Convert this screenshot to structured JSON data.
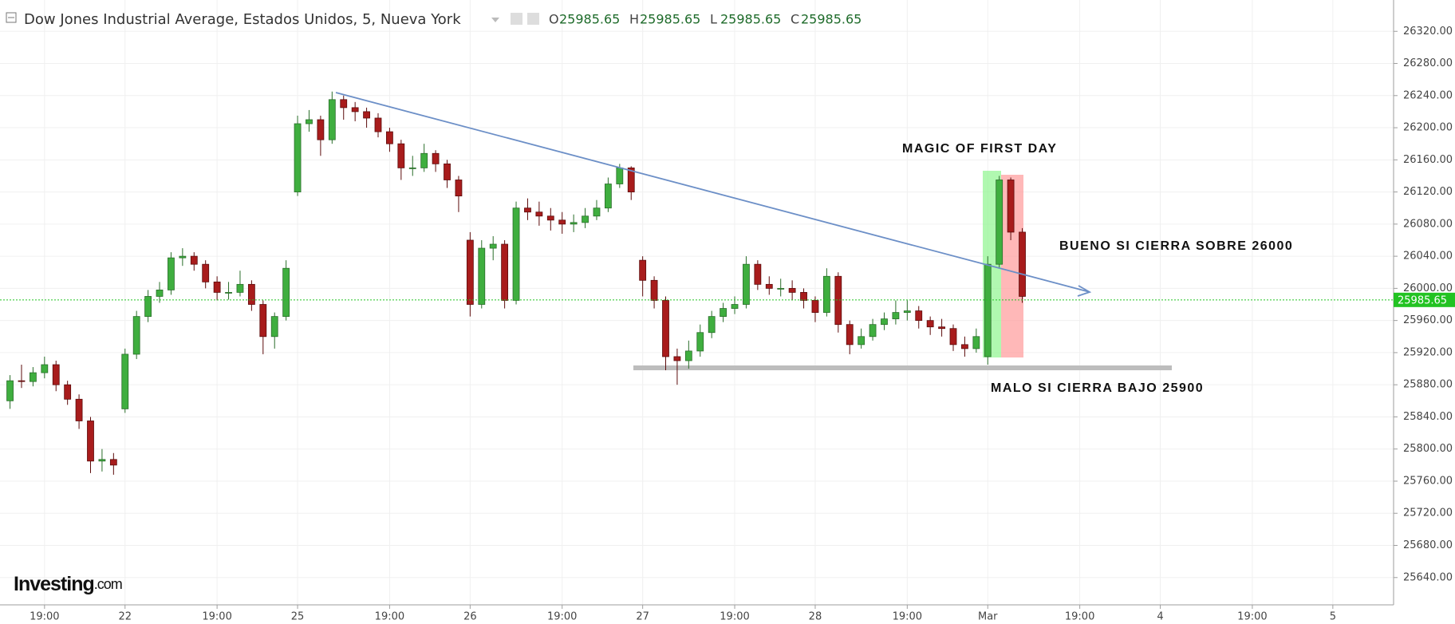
{
  "chart_data": {
    "type": "candlestick",
    "title": "Dow Jones Industrial Average, Estados Unidos, 5, Nueva York",
    "ohlc_labels": [
      "O",
      "H",
      "L",
      "C"
    ],
    "ohlc_values": [
      25985.65,
      25985.65,
      25985.65,
      25985.65
    ],
    "last_price": 25985.65,
    "annotations": [
      "MAGIC OF FIRST DAY",
      "BUENO SI CIERRA SOBRE 26000",
      "MALO SI CIERRA BAJO 25900"
    ],
    "logo": "Investing",
    "logo_suffix": ".com",
    "up_color": "#3fae3f",
    "down_color": "#a81c1c",
    "last_color": "#22c322",
    "grid": true,
    "ylim": [
      25606,
      26359
    ],
    "yticks": [
      {
        "value": 25640,
        "label": "25640.00"
      },
      {
        "value": 25680,
        "label": "25680.00"
      },
      {
        "value": 25720,
        "label": "25720.00"
      },
      {
        "value": 25760,
        "label": "25760.00"
      },
      {
        "value": 25800,
        "label": "25800.00"
      },
      {
        "value": 25840,
        "label": "25840.00"
      },
      {
        "value": 25880,
        "label": "25880.00"
      },
      {
        "value": 25920,
        "label": "25920.00"
      },
      {
        "value": 25960,
        "label": "25960.00"
      },
      {
        "value": 26000,
        "label": "26000.00"
      },
      {
        "value": 26040,
        "label": "26040.00"
      },
      {
        "value": 26080,
        "label": "26080.00"
      },
      {
        "value": 26120,
        "label": "26120.00"
      },
      {
        "value": 26160,
        "label": "26160.00"
      },
      {
        "value": 26200,
        "label": "26200.00"
      },
      {
        "value": 26240,
        "label": "26240.00"
      },
      {
        "value": 26280,
        "label": "26280.00"
      },
      {
        "value": 26320,
        "label": "26320.00"
      }
    ],
    "categories": [
      null,
      null,
      null,
      "19:00",
      null,
      null,
      null,
      null,
      null,
      null,
      "22",
      null,
      null,
      null,
      null,
      null,
      null,
      null,
      "19:00",
      null,
      null,
      null,
      null,
      null,
      null,
      "25",
      null,
      null,
      null,
      null,
      null,
      null,
      null,
      "19:00",
      null,
      null,
      null,
      null,
      null,
      null,
      "26",
      null,
      null,
      null,
      null,
      null,
      null,
      null,
      "19:00",
      null,
      null,
      null,
      null,
      null,
      null,
      "27",
      null,
      null,
      null,
      null,
      null,
      null,
      null,
      "19:00",
      null,
      null,
      null,
      null,
      null,
      null,
      "28",
      null,
      null,
      null,
      null,
      null,
      null,
      null,
      "19:00",
      null,
      null,
      null,
      null,
      null,
      null,
      "Mar",
      null,
      null,
      null,
      null,
      null,
      null,
      null,
      "19:00",
      null,
      null,
      null,
      null,
      null,
      null,
      "4",
      null,
      null,
      null,
      null,
      null,
      null,
      null,
      "19:00",
      null,
      null,
      null,
      null,
      null,
      null,
      "5",
      null,
      null,
      null,
      null,
      null
    ],
    "open": [
      25860,
      25885,
      25884,
      25895,
      25905,
      25880,
      25862,
      25835,
      25785,
      25787,
      25850,
      25918,
      25965,
      25990,
      25998,
      26038,
      26040,
      26030,
      26008,
      25995,
      25995,
      26005,
      25980,
      25940,
      25965,
      26120,
      26205,
      26210,
      26185,
      26235,
      26225,
      26220,
      26212,
      26195,
      26180,
      26150,
      26150,
      26168,
      26155,
      26135,
      26060,
      25980,
      26050,
      26055,
      25985,
      26100,
      26095,
      26090,
      26085,
      26080,
      26082,
      26090,
      26100,
      26130,
      26150,
      26035,
      26010,
      25985,
      25915,
      25910,
      25922,
      25945,
      25965,
      25975,
      25980,
      26030,
      26005,
      26000,
      26000,
      25995,
      25985,
      25970,
      26015,
      25955,
      25930,
      25940,
      25955,
      25962,
      25970,
      25972,
      25960,
      25952,
      25950,
      25930,
      25925,
      25915,
      26030,
      26135,
      26070,
      null,
      null,
      null,
      null,
      null,
      null,
      null,
      null,
      null,
      null,
      null,
      null,
      null,
      null,
      null,
      null,
      null,
      null,
      null,
      null,
      null,
      null,
      null,
      null,
      null,
      null,
      null,
      null,
      null,
      null,
      null,
      null
    ],
    "high": [
      25892,
      25905,
      25902,
      25915,
      25910,
      25885,
      25868,
      25840,
      25800,
      25795,
      25925,
      25972,
      25998,
      26008,
      26045,
      26050,
      26045,
      26035,
      26015,
      26008,
      26022,
      26010,
      25985,
      25970,
      26035,
      26215,
      26222,
      26215,
      26245,
      26240,
      26232,
      26225,
      26218,
      26200,
      26185,
      26165,
      26180,
      26172,
      26160,
      26140,
      26070,
      26060,
      26065,
      26060,
      26108,
      26112,
      26108,
      26100,
      26095,
      26092,
      26100,
      26110,
      26138,
      26155,
      26152,
      26040,
      26015,
      25990,
      25925,
      25935,
      25955,
      25972,
      25982,
      25990,
      26040,
      26035,
      26015,
      26012,
      26010,
      26000,
      25990,
      26025,
      26020,
      25960,
      25950,
      25962,
      25970,
      25985,
      25985,
      25978,
      25965,
      25962,
      25955,
      25940,
      25950,
      26040,
      26140,
      26138,
      26075,
      null,
      null,
      null,
      null,
      null,
      null,
      null,
      null,
      null,
      null,
      null,
      null,
      null,
      null,
      null,
      null,
      null,
      null,
      null,
      null,
      null,
      null,
      null,
      null,
      null,
      null,
      null,
      null,
      null,
      null,
      null,
      null
    ],
    "low": [
      25850,
      25876,
      25878,
      25888,
      25872,
      25855,
      25825,
      25770,
      25772,
      25768,
      25845,
      25912,
      25958,
      25982,
      25992,
      26028,
      26022,
      26000,
      25985,
      25986,
      25990,
      25972,
      25918,
      25925,
      25960,
      26115,
      26195,
      26165,
      26180,
      26210,
      26208,
      26200,
      26188,
      26170,
      26135,
      26140,
      26145,
      26145,
      26125,
      26095,
      25965,
      25975,
      26035,
      25975,
      25980,
      26085,
      26078,
      26072,
      26068,
      26070,
      26075,
      26085,
      26095,
      26125,
      26110,
      25990,
      25975,
      25898,
      25880,
      25900,
      25915,
      25938,
      25958,
      25968,
      25975,
      25998,
      25992,
      25990,
      25985,
      25975,
      25958,
      25965,
      25945,
      25918,
      25925,
      25935,
      25948,
      25955,
      25960,
      25950,
      25942,
      25940,
      25922,
      25915,
      25920,
      25905,
      26025,
      26060,
      25982,
      null,
      null,
      null,
      null,
      null,
      null,
      null,
      null,
      null,
      null,
      null,
      null,
      null,
      null,
      null,
      null,
      null,
      null,
      null,
      null,
      null,
      null,
      null,
      null,
      null,
      null,
      null,
      null,
      null,
      null,
      null,
      null
    ],
    "close": [
      25885,
      25884,
      25895,
      25905,
      25880,
      25862,
      25835,
      25785,
      25787,
      25780,
      25918,
      25965,
      25990,
      25998,
      26038,
      26040,
      26030,
      26008,
      25995,
      25995,
      26005,
      25980,
      25940,
      25965,
      26025,
      26205,
      26210,
      26185,
      26235,
      26225,
      26220,
      26212,
      26195,
      26180,
      26150,
      26150,
      26168,
      26155,
      26135,
      26115,
      25980,
      26050,
      26055,
      25985,
      26100,
      26095,
      26090,
      26085,
      26080,
      26082,
      26090,
      26100,
      26130,
      26150,
      26120,
      26010,
      25985,
      25915,
      25910,
      25922,
      25945,
      25965,
      25975,
      25980,
      26030,
      26005,
      26000,
      26000,
      25995,
      25985,
      25970,
      26015,
      25955,
      25930,
      25940,
      25955,
      25962,
      25970,
      25972,
      25960,
      25952,
      25950,
      25930,
      25925,
      25940,
      26030,
      26135,
      26070,
      25990,
      null,
      null,
      null,
      null,
      null,
      null,
      null,
      null,
      null,
      null,
      null,
      null,
      null,
      null,
      null,
      null,
      null,
      null,
      null,
      null,
      null,
      null,
      null,
      null,
      null,
      null,
      null,
      null,
      null,
      null,
      null,
      null
    ]
  }
}
